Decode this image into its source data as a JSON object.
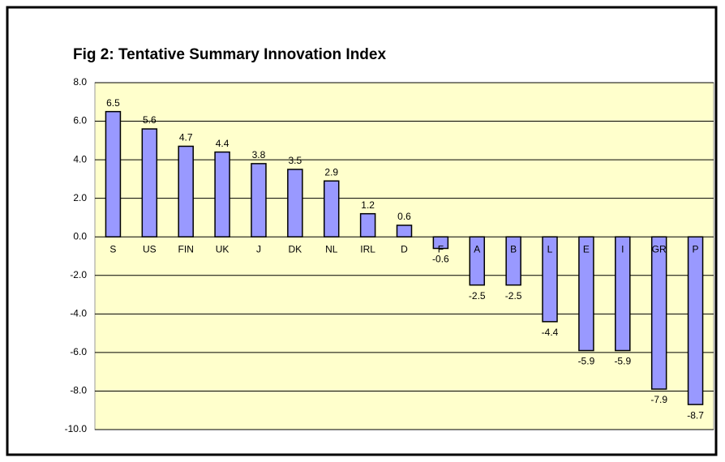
{
  "chart_data": {
    "type": "bar",
    "title": "Fig 2: Tentative Summary Innovation Index",
    "categories": [
      "S",
      "US",
      "FIN",
      "UK",
      "J",
      "DK",
      "NL",
      "IRL",
      "D",
      "F",
      "A",
      "B",
      "L",
      "E",
      "I",
      "GR",
      "P"
    ],
    "values": [
      6.5,
      5.6,
      4.7,
      4.4,
      3.8,
      3.5,
      2.9,
      1.2,
      0.6,
      -0.6,
      -2.5,
      -2.5,
      -4.4,
      -5.9,
      -5.9,
      -7.9,
      -8.7
    ],
    "color": "#9999ff",
    "ylim": [
      -10,
      8
    ],
    "yticks": [
      {
        "value": -10,
        "label": "-10.0"
      },
      {
        "value": -8,
        "label": "-8.0"
      },
      {
        "value": -6,
        "label": "-6.0"
      },
      {
        "value": -4,
        "label": "-4.0"
      },
      {
        "value": -2,
        "label": "-2.0"
      },
      {
        "value": 0,
        "label": "0.0"
      },
      {
        "value": 2,
        "label": "2.0"
      },
      {
        "value": 4,
        "label": "4.0"
      },
      {
        "value": 6,
        "label": "6.0"
      },
      {
        "value": 8,
        "label": "8.0"
      }
    ],
    "grid": true
  }
}
